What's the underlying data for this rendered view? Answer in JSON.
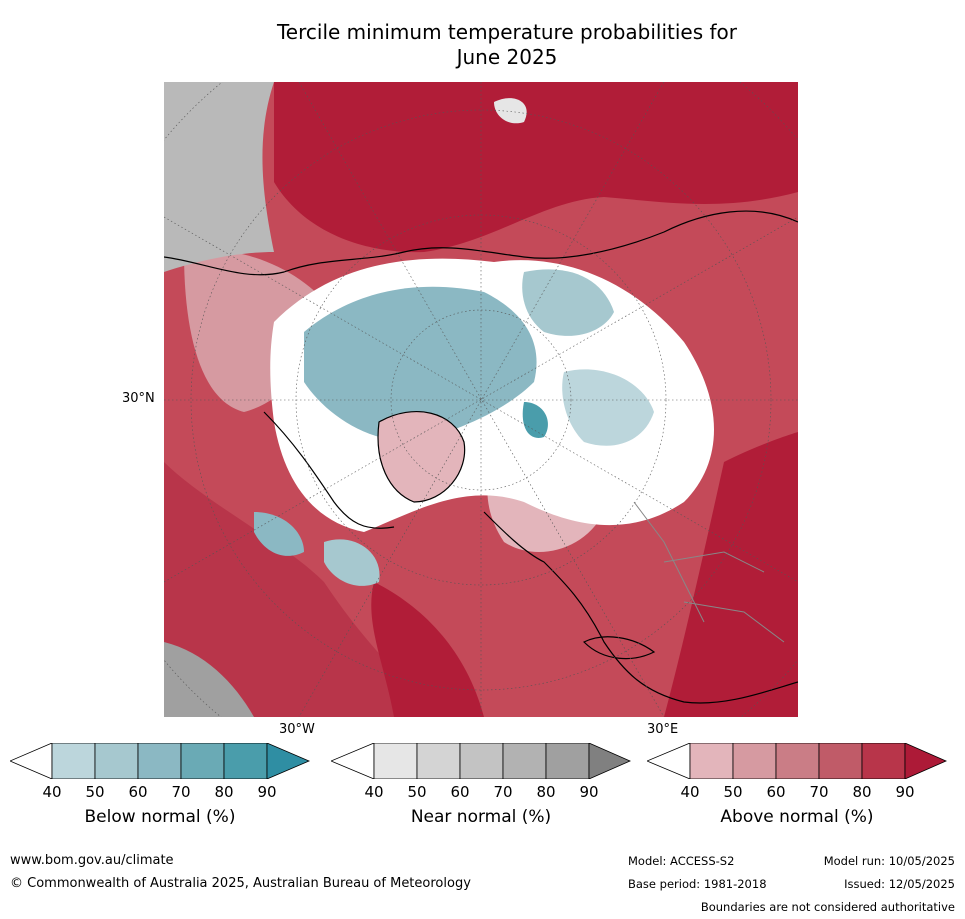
{
  "title_line1": "Tercile minimum temperature probabilities for",
  "title_line2": "June 2025",
  "map": {
    "lat_label": "30°N",
    "lon_label_west": "30°W",
    "lon_label_east": "30°E"
  },
  "legends": [
    {
      "caption": "Below normal (%)",
      "ticks": [
        "40",
        "50",
        "60",
        "70",
        "80",
        "90"
      ],
      "colors": [
        "#ffffff",
        "#bcd6dc",
        "#a6c8cf",
        "#8bb8c3",
        "#6aaab5",
        "#4a9dab",
        "#2f8ea3"
      ]
    },
    {
      "caption": "Near normal (%)",
      "ticks": [
        "40",
        "50",
        "60",
        "70",
        "80",
        "90"
      ],
      "colors": [
        "#ffffff",
        "#e6e6e6",
        "#d4d4d4",
        "#c3c3c3",
        "#b2b2b2",
        "#a0a0a0",
        "#808080"
      ]
    },
    {
      "caption": "Above normal (%)",
      "ticks": [
        "40",
        "50",
        "60",
        "70",
        "80",
        "90"
      ],
      "colors": [
        "#ffffff",
        "#e3b5bb",
        "#d69aa1",
        "#ca7d86",
        "#c05b68",
        "#b8354a",
        "#ad1a37"
      ]
    }
  ],
  "footer": {
    "website": "www.bom.gov.au/climate",
    "copyright": "© Commonwealth of Australia 2025, Australian Bureau of Meteorology",
    "model": "Model: ACCESS-S2",
    "model_run": "Model run: 10/05/2025",
    "base_period": "Base period: 1981-2018",
    "issued": "Issued: 12/05/2025",
    "disclaimer": "Boundaries are not considered authoritative"
  }
}
